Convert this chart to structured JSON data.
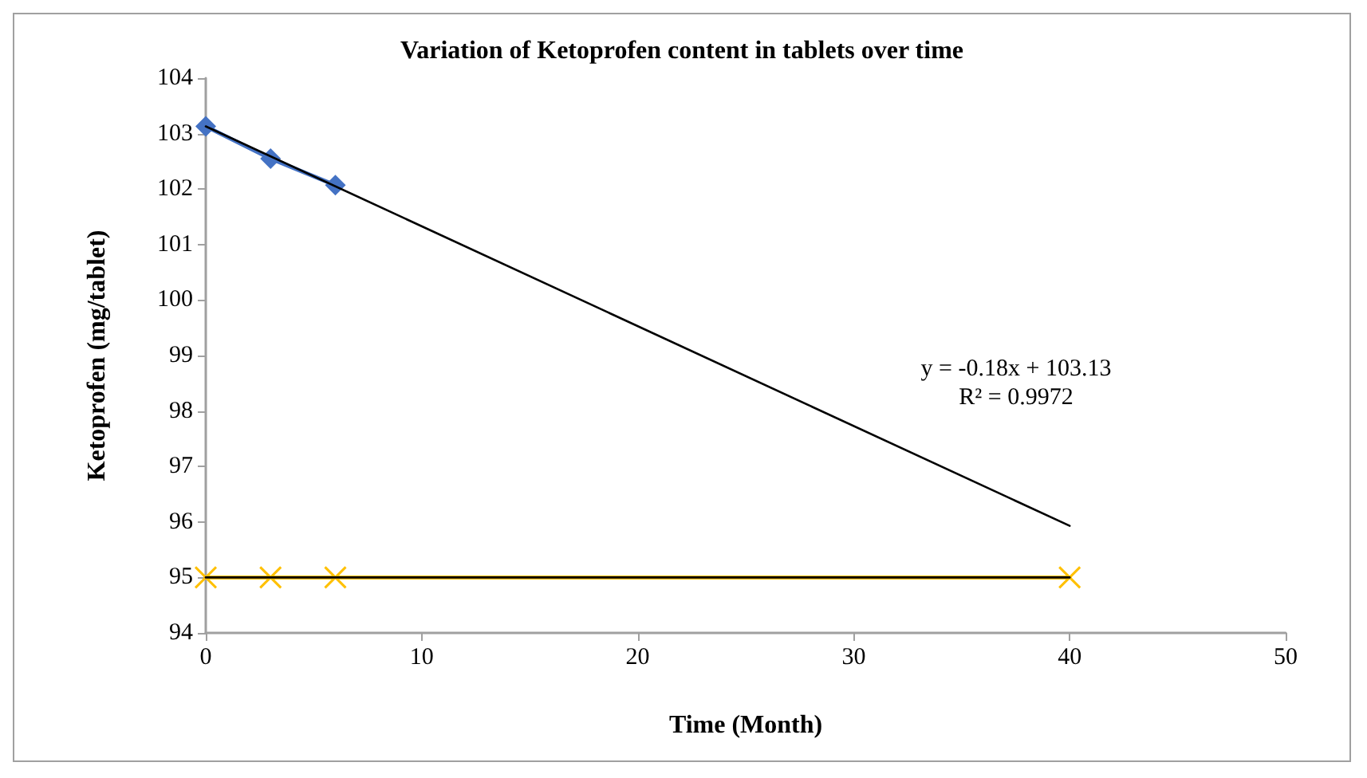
{
  "chart_data": {
    "type": "line",
    "title": "Variation of Ketoprofen content in tablets over time",
    "xlabel": "Time (Month)",
    "ylabel": "Ketoprofen (mg/tablet)",
    "series": [
      {
        "color": "#4472c4",
        "marker": "diamond",
        "x": [
          0,
          3,
          6
        ],
        "values": [
          103.13,
          102.55,
          102.07
        ]
      },
      {
        "color": "#000000",
        "marker": "none",
        "x": [
          0,
          40
        ],
        "values": [
          103.13,
          95.93
        ]
      },
      {
        "color": "#ffc000",
        "marker": "cross",
        "x": [
          0,
          3,
          6,
          40
        ],
        "values": [
          95,
          95,
          95,
          95
        ]
      },
      {
        "color": "#000000",
        "marker": "none",
        "x": [
          0,
          40
        ],
        "values": [
          95,
          95
        ]
      }
    ],
    "annotations": [
      "y = -0.18x + 103.13",
      "R² = 0.9972"
    ],
    "xlim": [
      0,
      50
    ],
    "xticks": [
      0,
      10,
      20,
      30,
      40,
      50
    ],
    "ylim": [
      94,
      104
    ],
    "yticks": [
      94,
      95,
      96,
      97,
      98,
      99,
      100,
      101,
      102,
      103,
      104
    ],
    "grid": false
  }
}
